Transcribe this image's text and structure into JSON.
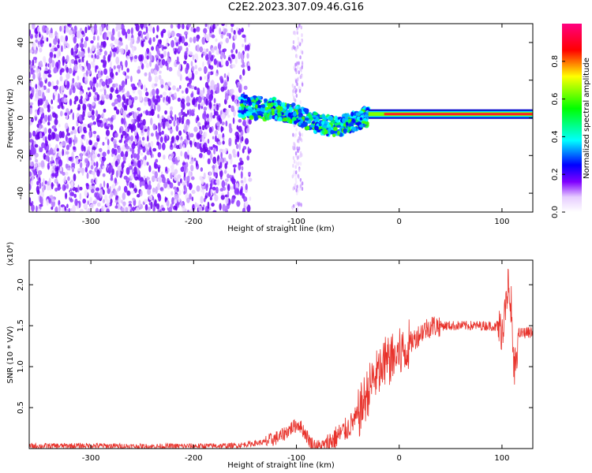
{
  "title": "C2E2.2023.307.09.46.G16",
  "chart_data": [
    {
      "type": "heatmap",
      "xlabel": "Height of straight line (km)",
      "ylabel": "Frequency (Hz)",
      "xlim": [
        -360,
        130
      ],
      "ylim": [
        -50,
        50
      ],
      "xticks": [
        "-300",
        "-200",
        "-100",
        "0",
        "100"
      ],
      "yticks": [
        "-40",
        "-20",
        "0",
        "20",
        "40"
      ],
      "colorbar": {
        "label": "Normalized spectral amplitude",
        "range": [
          0.0,
          1.0
        ],
        "ticks": [
          "0.0",
          "0.2",
          "0.4",
          "0.6",
          "0.8"
        ],
        "colormap": [
          "#ffffff",
          "#e6ccff",
          "#8000ff",
          "#0000ff",
          "#00ffff",
          "#00ff00",
          "#ffff00",
          "#ff0000",
          "#ff0080"
        ]
      },
      "ridge": {
        "x": [
          -150,
          -120,
          -100,
          -80,
          -60,
          -45,
          -30,
          -10,
          0,
          20,
          50,
          80,
          100,
          130
        ],
        "y": [
          6,
          4,
          2,
          -3,
          -5,
          -2,
          1,
          2,
          2,
          2,
          2,
          2,
          2,
          2
        ]
      }
    },
    {
      "type": "line",
      "xlabel": "Height of straight line (km)",
      "ylabel": "SNR (10 * V/V)",
      "multiplier": "(x10⁴)",
      "xlim": [
        -360,
        130
      ],
      "ylim": [
        0,
        23000
      ],
      "xticks": [
        "-300",
        "-200",
        "-100",
        "0",
        "100"
      ],
      "yticks": [
        "0.5",
        "1.0",
        "1.5",
        "2.0"
      ],
      "color": "#e8322b",
      "series": [
        {
          "x": [
            -360,
            -300,
            -250,
            -200,
            -160,
            -130,
            -115,
            -105,
            -98,
            -92,
            -86,
            -80,
            -72,
            -60,
            -50,
            -40,
            -32,
            -25,
            -18,
            -12,
            -6,
            0,
            8,
            16,
            24,
            32,
            40,
            50,
            60,
            75,
            90,
            100,
            104,
            108,
            112,
            116,
            125,
            130
          ],
          "y": [
            300,
            350,
            250,
            300,
            350,
            800,
            1500,
            2500,
            3000,
            2000,
            700,
            200,
            400,
            1500,
            2500,
            4000,
            6500,
            8500,
            9500,
            10500,
            11000,
            11500,
            12500,
            13500,
            14500,
            15000,
            15000,
            15000,
            15000,
            15000,
            15000,
            14500,
            17000,
            18000,
            9000,
            14000,
            14200,
            14200
          ]
        }
      ]
    }
  ]
}
